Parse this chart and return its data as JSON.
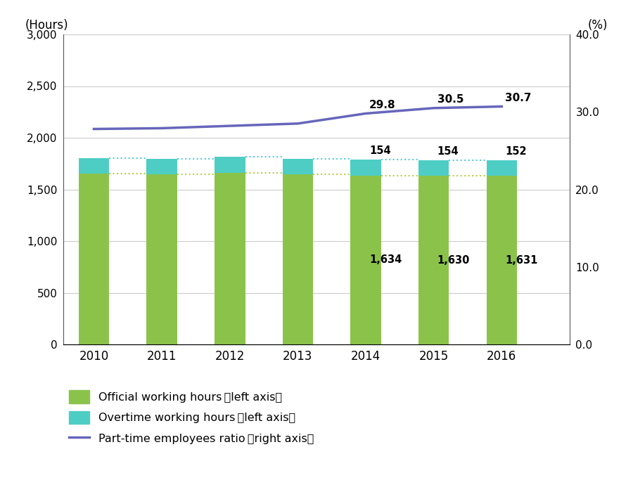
{
  "years": [
    2010,
    2011,
    2012,
    2013,
    2014,
    2015,
    2016
  ],
  "official_hours": [
    1650,
    1648,
    1660,
    1648,
    1634,
    1630,
    1631
  ],
  "overtime_hours": [
    152,
    150,
    154,
    150,
    154,
    154,
    152
  ],
  "parttime_ratio": [
    27.8,
    27.9,
    28.2,
    28.5,
    29.8,
    30.5,
    30.7
  ],
  "parttime_labels": [
    null,
    null,
    null,
    null,
    "29.8",
    "30.5",
    "30.7"
  ],
  "official_labels": [
    null,
    null,
    null,
    null,
    "1,634",
    "1,630",
    "1,631"
  ],
  "overtime_labels": [
    null,
    null,
    null,
    null,
    "154",
    "154",
    "152"
  ],
  "bar_color_green": "#8BC34A",
  "bar_color_cyan": "#4ECDC4",
  "line_color": "#6666BB",
  "dotted_line_color_top": "#55CCDD",
  "dotted_line_color_mid": "#BBCC44",
  "left_ylabel": "(Hours)",
  "right_ylabel": "(%)",
  "left_ylim": [
    0,
    3000
  ],
  "right_ylim": [
    0,
    40.0
  ],
  "left_yticks": [
    0,
    500,
    1000,
    1500,
    2000,
    2500,
    3000
  ],
  "right_yticks": [
    0,
    10.0,
    20.0,
    30.0,
    40.0
  ],
  "bar_width": 0.45,
  "background_color": "#ffffff",
  "grid_color": "#cccccc"
}
